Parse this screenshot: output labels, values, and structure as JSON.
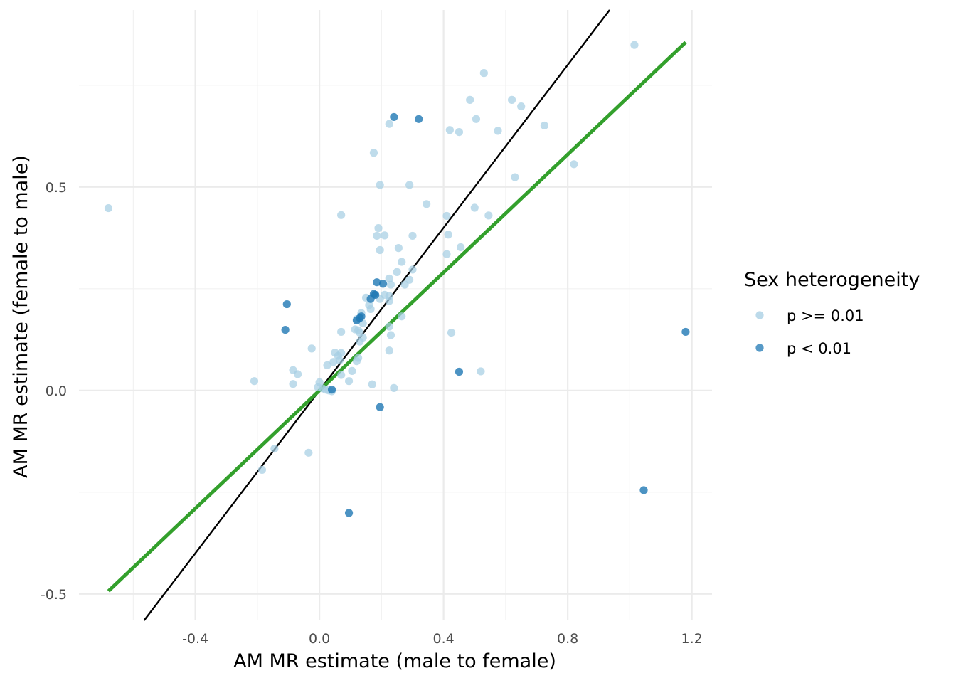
{
  "chart_data": {
    "type": "scatter",
    "title": "",
    "xlabel": "AM MR estimate (male to female)",
    "ylabel": "AM MR estimate (female to male)",
    "xlim": [
      -0.775,
      1.265
    ],
    "ylim": [
      -0.565,
      0.935
    ],
    "x_ticks": [
      {
        "value": -0.4,
        "label": "-0.4"
      },
      {
        "value": 0.0,
        "label": "0.0"
      },
      {
        "value": 0.4,
        "label": "0.4"
      },
      {
        "value": 0.8,
        "label": "0.8"
      },
      {
        "value": 1.2,
        "label": "1.2"
      }
    ],
    "y_ticks": [
      {
        "value": -0.5,
        "label": "-0.5"
      },
      {
        "value": 0.0,
        "label": "0.0"
      },
      {
        "value": 0.5,
        "label": "0.5"
      }
    ],
    "grid": true,
    "legend": {
      "title": "Sex heterogeneity",
      "placement": "right",
      "entries": [
        {
          "label": "p >= 0.01",
          "color": "#a6cee3"
        },
        {
          "label": "p < 0.01",
          "color": "#1f78b4"
        }
      ]
    },
    "reference_lines": [
      {
        "name": "identity",
        "color": "#000000",
        "slope": 1.0,
        "intercept": 0.0
      },
      {
        "name": "fit",
        "color": "#33a02c",
        "slope": 0.725,
        "intercept": 0.0,
        "x_range": [
          -0.68,
          1.18
        ]
      }
    ],
    "series": [
      {
        "label": "p >= 0.01",
        "color": "#a6cee3",
        "points": [
          [
            -0.68,
            0.448
          ],
          [
            1.015,
            0.849
          ],
          [
            0.53,
            0.78
          ],
          [
            0.485,
            0.714
          ],
          [
            0.62,
            0.714
          ],
          [
            0.65,
            0.698
          ],
          [
            0.505,
            0.667
          ],
          [
            0.225,
            0.655
          ],
          [
            0.42,
            0.64
          ],
          [
            0.45,
            0.635
          ],
          [
            0.575,
            0.638
          ],
          [
            0.725,
            0.651
          ],
          [
            0.175,
            0.584
          ],
          [
            0.82,
            0.556
          ],
          [
            0.63,
            0.524
          ],
          [
            0.195,
            0.505
          ],
          [
            0.29,
            0.505
          ],
          [
            0.345,
            0.458
          ],
          [
            0.5,
            0.449
          ],
          [
            0.07,
            0.431
          ],
          [
            0.41,
            0.429
          ],
          [
            0.545,
            0.43
          ],
          [
            0.19,
            0.399
          ],
          [
            0.185,
            0.38
          ],
          [
            0.21,
            0.381
          ],
          [
            0.3,
            0.38
          ],
          [
            0.415,
            0.383
          ],
          [
            0.195,
            0.345
          ],
          [
            0.255,
            0.35
          ],
          [
            0.455,
            0.352
          ],
          [
            0.41,
            0.335
          ],
          [
            0.265,
            0.316
          ],
          [
            0.25,
            0.291
          ],
          [
            0.3,
            0.297
          ],
          [
            0.225,
            0.275
          ],
          [
            0.29,
            0.272
          ],
          [
            0.23,
            0.26
          ],
          [
            0.275,
            0.26
          ],
          [
            0.18,
            0.235
          ],
          [
            0.21,
            0.235
          ],
          [
            0.225,
            0.232
          ],
          [
            0.15,
            0.228
          ],
          [
            0.195,
            0.225
          ],
          [
            0.16,
            0.21
          ],
          [
            0.165,
            0.2
          ],
          [
            0.225,
            0.22
          ],
          [
            0.135,
            0.19
          ],
          [
            0.265,
            0.182
          ],
          [
            0.12,
            0.175
          ],
          [
            0.14,
            0.165
          ],
          [
            0.225,
            0.157
          ],
          [
            0.115,
            0.15
          ],
          [
            0.125,
            0.148
          ],
          [
            0.13,
            0.142
          ],
          [
            0.07,
            0.144
          ],
          [
            0.425,
            0.142
          ],
          [
            0.23,
            0.136
          ],
          [
            0.14,
            0.13
          ],
          [
            0.13,
            0.12
          ],
          [
            -0.025,
            0.103
          ],
          [
            0.225,
            0.098
          ],
          [
            0.05,
            0.093
          ],
          [
            0.07,
            0.092
          ],
          [
            0.06,
            0.085
          ],
          [
            0.125,
            0.08
          ],
          [
            0.045,
            0.07
          ],
          [
            0.12,
            0.072
          ],
          [
            0.065,
            0.074
          ],
          [
            0.025,
            0.062
          ],
          [
            -0.085,
            0.05
          ],
          [
            0.105,
            0.048
          ],
          [
            0.52,
            0.047
          ],
          [
            -0.07,
            0.04
          ],
          [
            0.07,
            0.038
          ],
          [
            -0.21,
            0.023
          ],
          [
            0.0,
            0.02
          ],
          [
            0.095,
            0.023
          ],
          [
            -0.085,
            0.016
          ],
          [
            0.17,
            0.015
          ],
          [
            0.24,
            0.006
          ],
          [
            -0.005,
            0.008
          ],
          [
            0.01,
            0.005
          ],
          [
            0.02,
            0.002
          ],
          [
            0.03,
            0.0
          ],
          [
            0.04,
            -0.002
          ],
          [
            -0.035,
            -0.153
          ],
          [
            -0.145,
            -0.143
          ],
          [
            -0.185,
            -0.195
          ]
        ]
      },
      {
        "label": "p < 0.01",
        "color": "#1f78b4",
        "points": [
          [
            0.24,
            0.672
          ],
          [
            0.32,
            0.667
          ],
          [
            0.185,
            0.266
          ],
          [
            0.205,
            0.262
          ],
          [
            0.175,
            0.237
          ],
          [
            0.18,
            0.235
          ],
          [
            0.165,
            0.225
          ],
          [
            -0.105,
            0.212
          ],
          [
            0.135,
            0.182
          ],
          [
            0.13,
            0.178
          ],
          [
            0.12,
            0.172
          ],
          [
            -0.11,
            0.149
          ],
          [
            1.18,
            0.144
          ],
          [
            0.45,
            0.046
          ],
          [
            0.04,
            0.002
          ],
          [
            0.195,
            -0.041
          ],
          [
            1.045,
            -0.245
          ],
          [
            0.095,
            -0.301
          ]
        ]
      }
    ]
  }
}
